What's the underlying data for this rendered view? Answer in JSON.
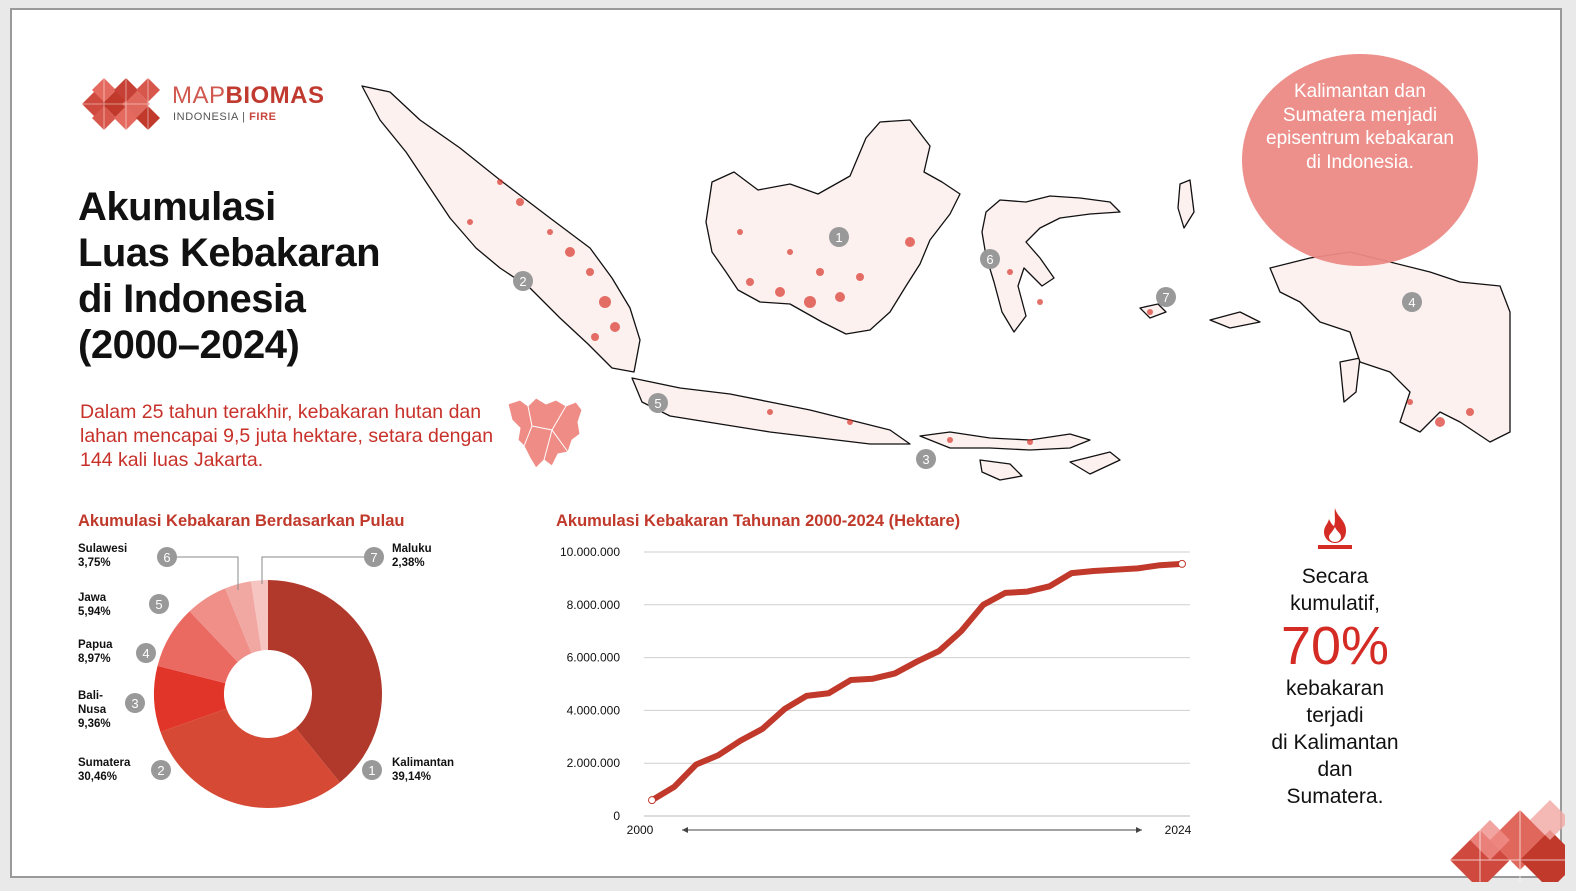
{
  "logo": {
    "brand_light": "MAP",
    "brand_bold": "BIOMAS",
    "sub_left": "INDONESIA",
    "sub_sep": "|",
    "sub_right": "FIRE"
  },
  "title": "Akumulasi\nLuas Kebakaran\ndi Indonesia\n(2000–2024)",
  "intro": "Dalam 25 tahun terakhir, kebakaran hutan dan lahan mencapai 9,5 juta hektare, setara dengan 144 kali luas Jakarta.",
  "bubble": "Kalimantan dan Sumatera menjadi episentrum kebakaran di Indonesia.",
  "map_markers": [
    "1",
    "2",
    "3",
    "4",
    "5",
    "6",
    "7"
  ],
  "stat": {
    "pre": "Secara\nkumulatif,",
    "big": "70%",
    "post": "kebakaran\nterjadi\ndi Kalimantan\ndan\nSumatera."
  },
  "colors": {
    "accent": "#c0392b",
    "bubble": "#ec8a85",
    "line": "#c0392b"
  },
  "chart_data": [
    {
      "type": "pie",
      "title": "Akumulasi Kebakaran Berdasarkan Pulau",
      "donut": true,
      "slices": [
        {
          "num": "1",
          "name": "Kalimantan",
          "pct_label": "39,14%",
          "value": 39.14,
          "color": "#b0392c"
        },
        {
          "num": "2",
          "name": "Sumatera",
          "pct_label": "30,46%",
          "value": 30.46,
          "color": "#d64a35"
        },
        {
          "num": "3",
          "name": "Bali-\nNusa",
          "pct_label": "9,36%",
          "value": 9.36,
          "color": "#e2352a"
        },
        {
          "num": "4",
          "name": "Papua",
          "pct_label": "8,97%",
          "value": 8.97,
          "color": "#ea6a62"
        },
        {
          "num": "5",
          "name": "Jawa",
          "pct_label": "5,94%",
          "value": 5.94,
          "color": "#ef8f88"
        },
        {
          "num": "6",
          "name": "Sulawesi",
          "pct_label": "3,75%",
          "value": 3.75,
          "color": "#f2a8a2"
        },
        {
          "num": "7",
          "name": "Maluku",
          "pct_label": "2,38%",
          "value": 2.38,
          "color": "#f6c5c1"
        }
      ]
    },
    {
      "type": "line",
      "title": "Akumulasi Kebakaran Tahunan 2000-2024 (Hektare)",
      "x": [
        2000,
        2001,
        2002,
        2003,
        2004,
        2005,
        2006,
        2007,
        2008,
        2009,
        2010,
        2011,
        2012,
        2013,
        2014,
        2015,
        2016,
        2017,
        2018,
        2019,
        2020,
        2021,
        2022,
        2023,
        2024
      ],
      "y": [
        600000,
        1100000,
        1950000,
        2300000,
        2850000,
        3300000,
        4050000,
        4550000,
        4650000,
        5150000,
        5200000,
        5400000,
        5850000,
        6250000,
        7000000,
        8000000,
        8450000,
        8500000,
        8700000,
        9200000,
        9280000,
        9330000,
        9380000,
        9500000,
        9550000
      ],
      "ylim": [
        0,
        10000000
      ],
      "y_ticks": [
        "0",
        "2.000.000",
        "4.000.000",
        "6.000.000",
        "8.000.000",
        "10.000.000"
      ],
      "x_tick_labels": [
        "2000",
        "2024"
      ],
      "grid": true,
      "color": "#c0392b"
    }
  ]
}
